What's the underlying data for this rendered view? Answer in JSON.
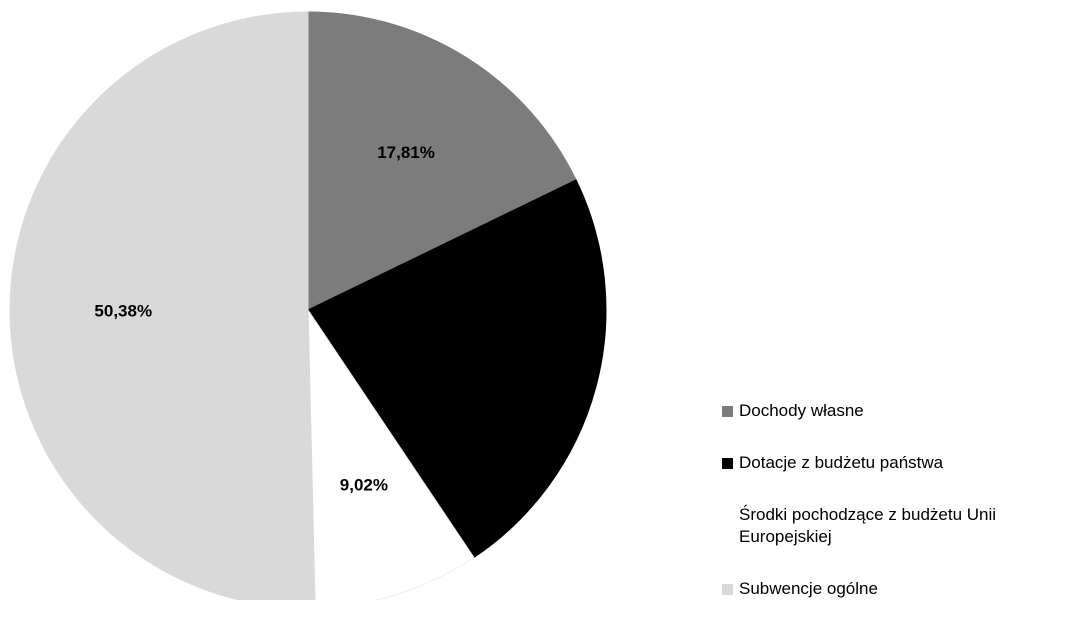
{
  "chart_data": {
    "type": "pie",
    "categories": [
      "Dochody własne",
      "Dotacje z budżetu państwa",
      "Środki pochodzące z budżetu Unii Europejskiej",
      "Subwencje ogólne"
    ],
    "values": [
      17.81,
      22.79,
      9.02,
      50.38
    ],
    "value_labels": [
      "17,81%",
      null,
      "9,02%",
      "50,38%"
    ],
    "colors": [
      "#7c7c7c",
      "#000000",
      "#ffffff",
      "#d9d9d9"
    ],
    "legend": "right"
  }
}
